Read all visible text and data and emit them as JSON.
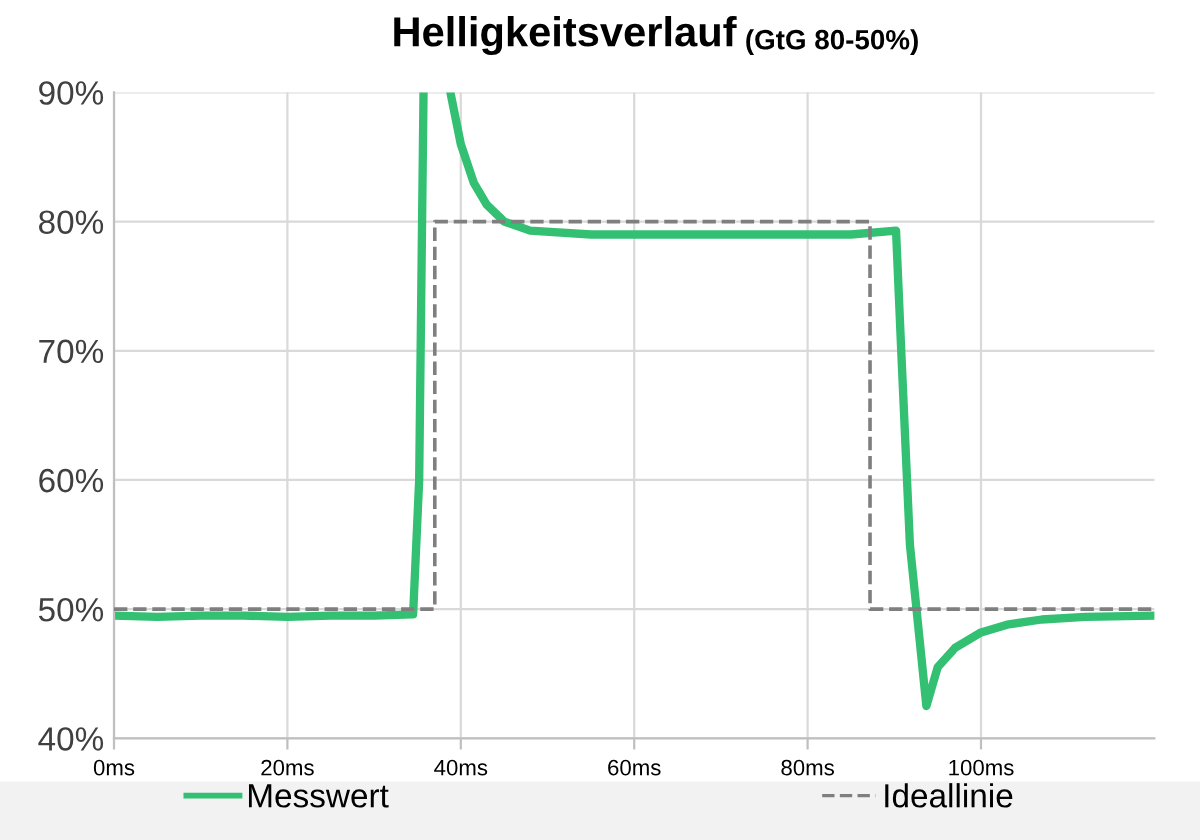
{
  "chart_data": {
    "type": "line",
    "title": "Helligkeitsverlauf",
    "subtitle": "(GtG 80-50%)",
    "series": [
      {
        "name": "Messwert",
        "color": "#33c073",
        "line_style": "solid",
        "x": [
          0,
          5,
          10,
          15,
          20,
          25,
          30,
          34.5,
          35.2,
          35.7,
          37.4,
          38.8,
          40,
          41.5,
          43,
          45,
          48,
          55,
          65,
          75,
          85,
          90.2,
          90.8,
          91.8,
          93.7,
          95,
          97,
          100,
          103,
          107,
          112,
          120
        ],
        "values": [
          49.5,
          49.4,
          49.5,
          49.5,
          49.4,
          49.5,
          49.5,
          49.6,
          60,
          90,
          null,
          90,
          86,
          83,
          81.3,
          80,
          79.3,
          79,
          79,
          79,
          79,
          79.3,
          70,
          55,
          42.5,
          45.5,
          47,
          48.2,
          48.8,
          49.2,
          49.4,
          49.5
        ]
      },
      {
        "name": "Ideallinie",
        "color": "#7f7f7f",
        "line_style": "dashed",
        "x": [
          0,
          37,
          37,
          87.2,
          87.2,
          120
        ],
        "values": [
          50,
          50,
          80,
          80,
          50,
          50
        ]
      }
    ],
    "xlim": [
      0,
      120
    ],
    "xticks": [
      {
        "value": 0,
        "label": "0ms"
      },
      {
        "value": 20,
        "label": "20ms"
      },
      {
        "value": 40,
        "label": "40ms"
      },
      {
        "value": 60,
        "label": "60ms"
      },
      {
        "value": 80,
        "label": "80ms"
      },
      {
        "value": 100,
        "label": "100ms"
      }
    ],
    "ylim": [
      40,
      90
    ],
    "yticks": [
      {
        "value": 40,
        "label": "40%"
      },
      {
        "value": 50,
        "label": "50%"
      },
      {
        "value": 60,
        "label": "60%"
      },
      {
        "value": 70,
        "label": "70%"
      },
      {
        "value": 80,
        "label": "80%"
      },
      {
        "value": 90,
        "label": "90%"
      }
    ],
    "grid": true,
    "legend": "bottom",
    "marker": "none"
  }
}
